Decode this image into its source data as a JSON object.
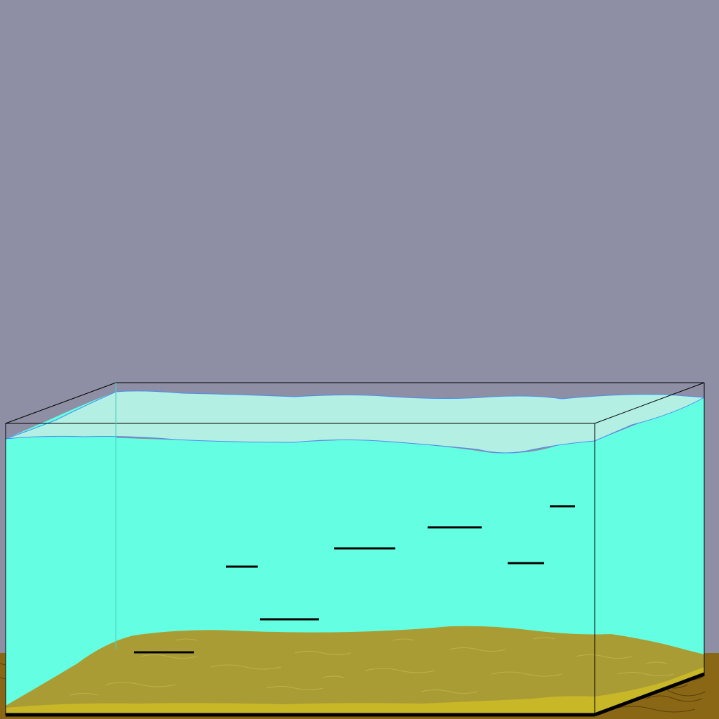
{
  "scene": {
    "type": "aquarium-simulation",
    "colors": {
      "wall": "#8e8fa5",
      "table": "#8a6714",
      "table_grain": "#5a420c",
      "water": "#64ffe2",
      "water_surface": "#b3efe3",
      "water_edge": "#4a8cf0",
      "sand": "#aa9c34",
      "sand_front": "#c8b828",
      "sand_texture": "#c2b44c",
      "glass_edge": "#000000",
      "fish": "#000000",
      "left_water_outside": "#3fb3a3"
    },
    "fish_count": 7
  }
}
